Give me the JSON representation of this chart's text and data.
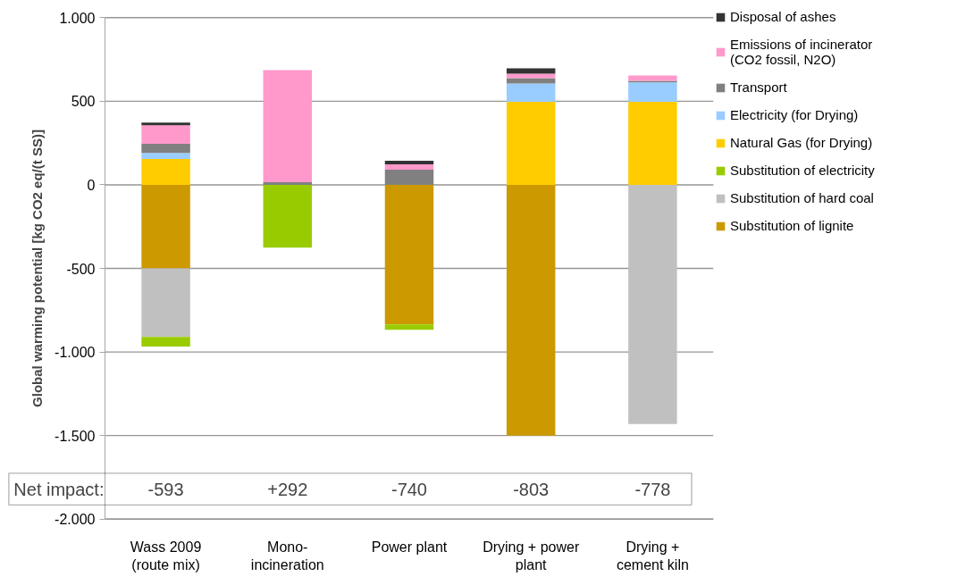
{
  "chart_data": {
    "type": "bar",
    "stacked": true,
    "ylabel": "Global warming potential [kg CO2 eq/(t SS)]",
    "categories": [
      "Wass 2009 (route mix)",
      "Mono-incineration",
      "Power plant",
      "Drying + power plant",
      "Drying + cement kiln"
    ],
    "ylim": [
      -2000,
      1000
    ],
    "yticks": [
      {
        "value": -2000,
        "label": "-2.000"
      },
      {
        "value": -1500,
        "label": "-1.500"
      },
      {
        "value": -1000,
        "label": "-1.000"
      },
      -500,
      0,
      500,
      {
        "value": 1000,
        "label": "1.000"
      }
    ],
    "grid": "y",
    "legend": "right",
    "series": [
      {
        "name": "Substitution of lignite",
        "color": "#cc9900",
        "values": [
          -500,
          null,
          -835,
          -1500,
          null
        ]
      },
      {
        "name": "Substitution of hard coal",
        "color": "#c0c0c0",
        "values": [
          -410,
          null,
          null,
          null,
          -1431
        ]
      },
      {
        "name": "Substitution of electricity",
        "color": "#99cc00",
        "values": [
          -58,
          -376,
          -32,
          null,
          null
        ]
      },
      {
        "name": "Natural Gas (for Drying)",
        "color": "#ffcc00",
        "values": [
          154,
          null,
          null,
          496,
          496
        ]
      },
      {
        "name": "Electricity (for Drying)",
        "color": "#99ccff",
        "values": [
          37,
          null,
          null,
          110,
          117
        ]
      },
      {
        "name": "Transport",
        "color": "#808080",
        "values": [
          54,
          16,
          90,
          32,
          9
        ]
      },
      {
        "name": "Emissions of incinerator (CO2 fossil, N2O)",
        "color": "#ff99cc",
        "values": [
          111,
          670,
          32,
          27,
          32
        ]
      },
      {
        "name": "Disposal of ashes",
        "color": "#333333",
        "values": [
          16,
          null,
          22,
          32,
          null
        ]
      }
    ],
    "annotations": [
      "Net impact:",
      "-593",
      "+292",
      "-740",
      "-803",
      "-778"
    ]
  }
}
